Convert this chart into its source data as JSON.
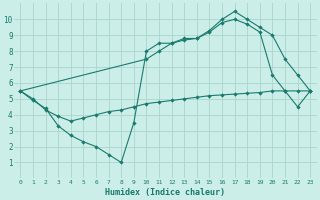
{
  "xlabel": "Humidex (Indice chaleur)",
  "bg_color": "#cceee8",
  "grid_color": "#aad4cc",
  "line_color": "#1a7a6e",
  "xlim": [
    -0.5,
    23.5
  ],
  "ylim": [
    0,
    11
  ],
  "xticks": [
    0,
    1,
    2,
    3,
    4,
    5,
    6,
    7,
    8,
    9,
    10,
    11,
    12,
    13,
    14,
    15,
    16,
    17,
    18,
    19,
    20,
    21,
    22,
    23
  ],
  "yticks": [
    1,
    2,
    3,
    4,
    5,
    6,
    7,
    8,
    9,
    10
  ],
  "line1_x": [
    0,
    1,
    2,
    3,
    4,
    5,
    6,
    7,
    8,
    9,
    10,
    11,
    12,
    13,
    14,
    15,
    16,
    17,
    18,
    19,
    20,
    21,
    22,
    23
  ],
  "line1_y": [
    5.5,
    4.9,
    4.4,
    3.3,
    2.7,
    2.3,
    2.0,
    1.5,
    1.0,
    3.5,
    8.0,
    8.5,
    8.5,
    8.8,
    8.8,
    9.3,
    10.0,
    10.5,
    10.0,
    9.5,
    9.0,
    7.5,
    6.5,
    5.5
  ],
  "line2_x": [
    0,
    10,
    11,
    12,
    13,
    14,
    15,
    16,
    17,
    18,
    19,
    20,
    21,
    22,
    23
  ],
  "line2_y": [
    5.5,
    7.5,
    8.0,
    8.5,
    8.7,
    8.8,
    9.2,
    9.8,
    10.0,
    9.7,
    9.2,
    6.5,
    5.5,
    4.5,
    5.5
  ],
  "line3_x": [
    0,
    1,
    2,
    3,
    4,
    5,
    6,
    7,
    8,
    9,
    10,
    11,
    12,
    13,
    14,
    15,
    16,
    17,
    18,
    19,
    20,
    21,
    22,
    23
  ],
  "line3_y": [
    5.5,
    5.0,
    4.3,
    3.9,
    3.6,
    3.8,
    4.0,
    4.2,
    4.3,
    4.5,
    4.7,
    4.8,
    4.9,
    5.0,
    5.1,
    5.2,
    5.25,
    5.3,
    5.35,
    5.4,
    5.5,
    5.5,
    5.5,
    5.5
  ]
}
